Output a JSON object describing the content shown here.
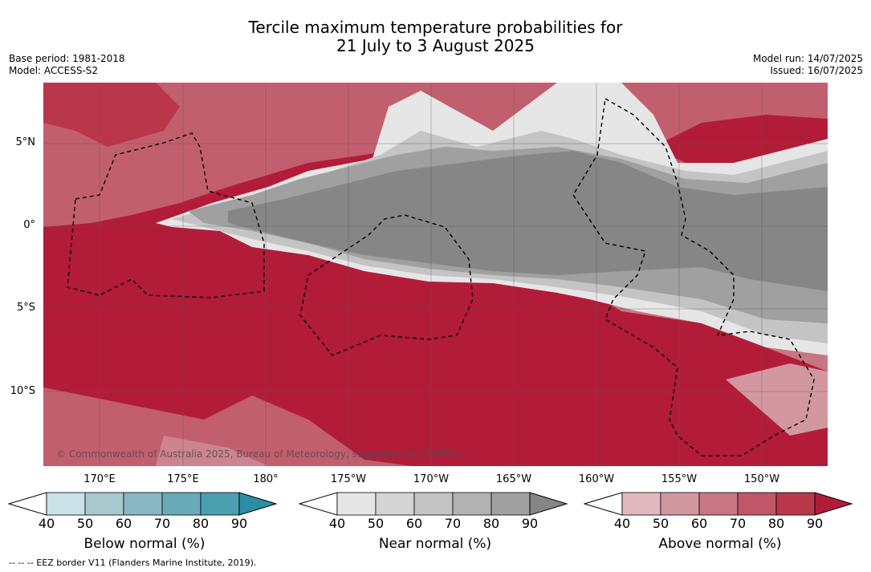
{
  "title_line1": "Tercile maximum temperature probabilities for",
  "title_line2": "21 July to 3 August 2025",
  "base_period": "Base period: 1981-2018",
  "model": "Model: ACCESS-S2",
  "model_run": "Model run: 14/07/2025",
  "issued": "Issued: 16/07/2025",
  "copyright": "© Commonwealth of Australia 2025, Bureau of Meteorology, supported by COSPPac",
  "footnote": "-- -- -- EEZ border V11 (Flanders Marine Institute, 2019).",
  "lat_labels": [
    "5°N",
    "0°",
    "5°S",
    "10°S"
  ],
  "lon_labels": [
    "170°E",
    "175°E",
    "180°",
    "175°W",
    "170°W",
    "165°W",
    "160°W",
    "155°W",
    "150°W"
  ],
  "colorbars": [
    {
      "title": "Below normal (%)",
      "ticks": [
        "40",
        "50",
        "60",
        "70",
        "80",
        "90"
      ],
      "colors": [
        "#ffffff",
        "#c9e1e7",
        "#a8c8cf",
        "#89b7c3",
        "#6aaab9",
        "#4a9fb0",
        "#2b8fa3"
      ]
    },
    {
      "title": "Near normal (%)",
      "ticks": [
        "40",
        "50",
        "60",
        "70",
        "80",
        "90"
      ],
      "colors": [
        "#ffffff",
        "#e6e6e6",
        "#d4d4d4",
        "#c4c4c4",
        "#b2b2b2",
        "#a0a0a0",
        "#868686"
      ]
    },
    {
      "title": "Above normal (%)",
      "ticks": [
        "40",
        "50",
        "60",
        "70",
        "80",
        "90"
      ],
      "colors": [
        "#ffffff",
        "#e0b8bd",
        "#d3979f",
        "#c77781",
        "#bf5769",
        "#b9364b",
        "#b21c39"
      ]
    }
  ],
  "map_colors": {
    "above_90": "#b21c39",
    "above_80": "#b9364b",
    "above_70": "#bf5769",
    "above_60": "#c77781",
    "above_50": "#d3979f",
    "above_40": "#e0b8bd",
    "near_40": "#e6e6e6",
    "near_50": "#d4d4d4",
    "near_60": "#c4c4c4",
    "near_70": "#b2b2b2",
    "near_80": "#a0a0a0",
    "near_90": "#868686"
  }
}
